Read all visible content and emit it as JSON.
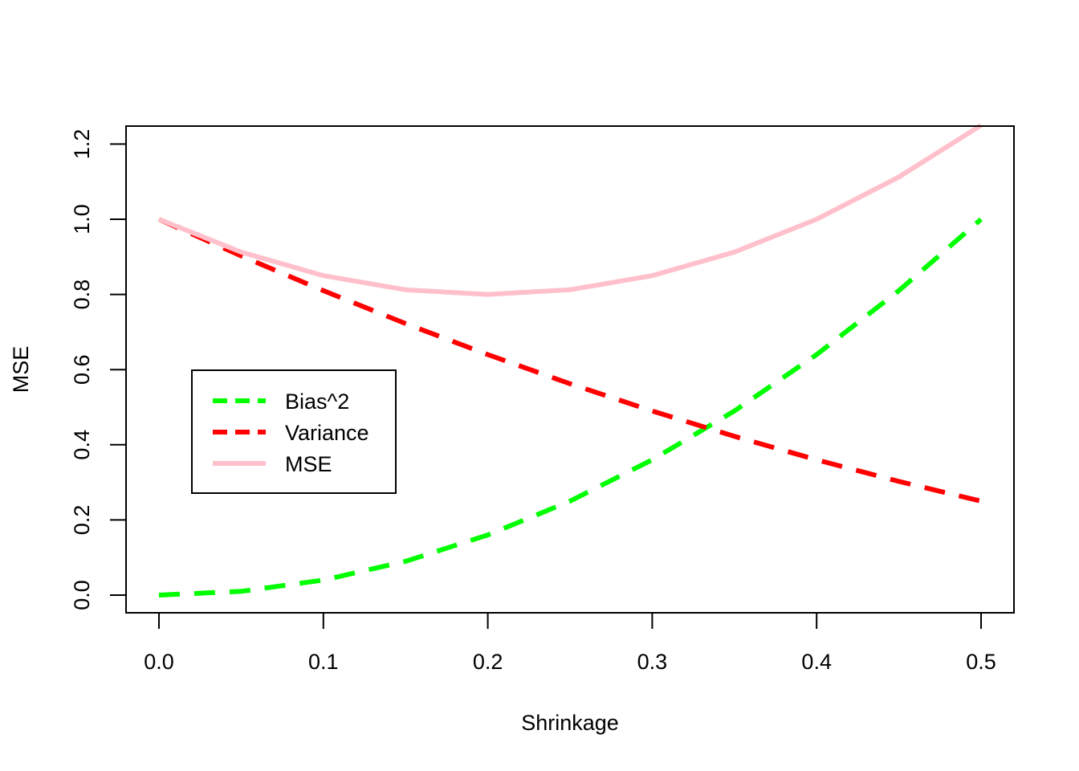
{
  "chart_data": {
    "type": "line",
    "title": "",
    "xlabel": "Shrinkage",
    "ylabel": "MSE",
    "xlim": [
      -0.02,
      0.52
    ],
    "ylim": [
      -0.05,
      1.25
    ],
    "x_ticks": [
      "0.0",
      "0.1",
      "0.2",
      "0.3",
      "0.4",
      "0.5"
    ],
    "y_ticks": [
      "0.0",
      "0.2",
      "0.4",
      "0.6",
      "0.8",
      "1.0",
      "1.2"
    ],
    "grid": false,
    "legend_position": "left-center",
    "x": [
      0,
      0.05,
      0.1,
      0.15,
      0.2,
      0.25,
      0.3,
      0.35,
      0.4,
      0.45,
      0.5
    ],
    "series": [
      {
        "name": "Bias^2",
        "color": "#00ff00",
        "style": "dashed",
        "values": [
          0,
          0.01,
          0.04,
          0.09,
          0.16,
          0.25,
          0.36,
          0.49,
          0.64,
          0.81,
          1.0
        ]
      },
      {
        "name": "Variance",
        "color": "#ff0000",
        "style": "dashed",
        "values": [
          1.0,
          0.9025,
          0.81,
          0.7225,
          0.64,
          0.5625,
          0.49,
          0.4225,
          0.36,
          0.3025,
          0.25
        ]
      },
      {
        "name": "MSE",
        "color": "#ffc0cb",
        "style": "solid",
        "values": [
          1.0,
          0.9125,
          0.85,
          0.8125,
          0.8,
          0.8125,
          0.85,
          0.9125,
          1.0,
          1.1125,
          1.25
        ]
      }
    ]
  }
}
